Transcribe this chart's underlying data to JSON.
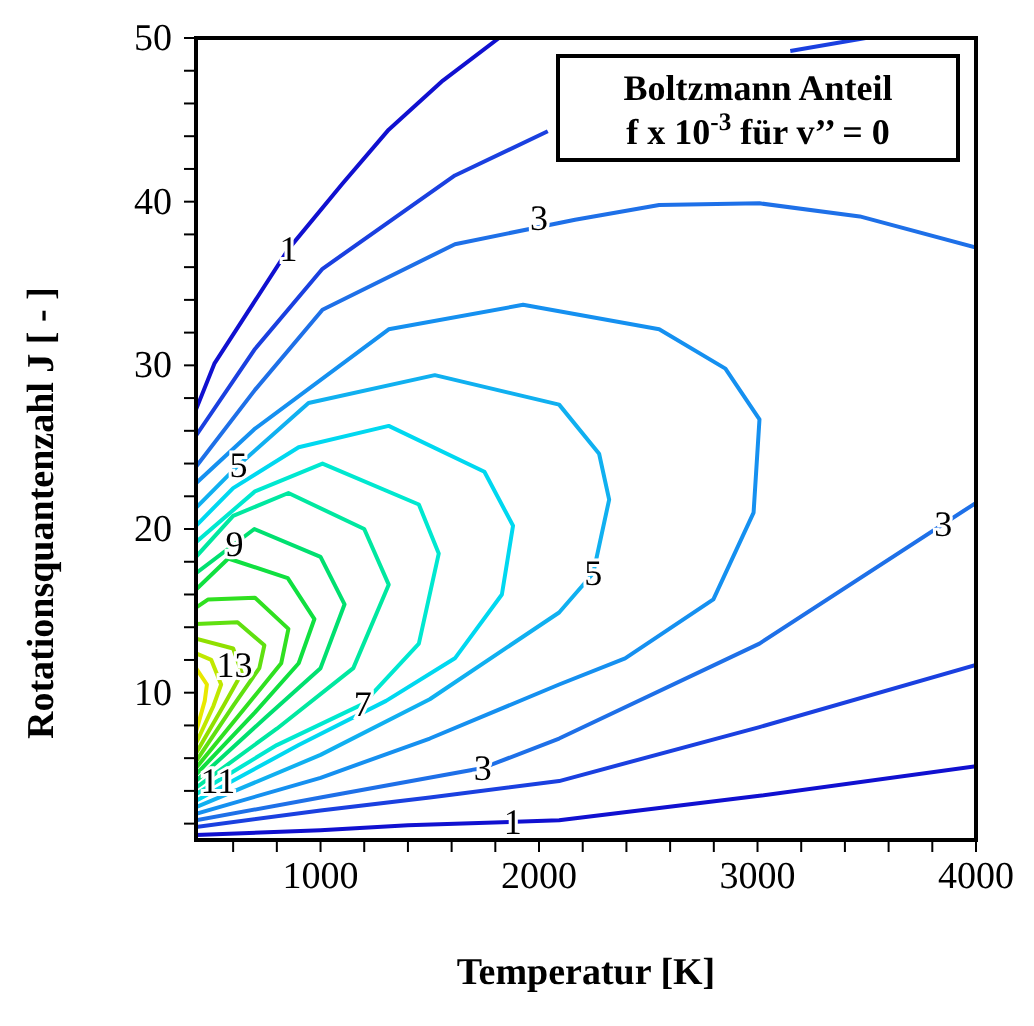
{
  "chart_data": {
    "type": "line",
    "title": "Boltzmann Anteil",
    "subtitle": "f x 10$^{-3}$  für v’’ = 0",
    "xlabel": "Temperatur [K]",
    "ylabel": "Rotationsquantenzahl J [ - ]",
    "xlim": [
      430,
      4000
    ],
    "ylim": [
      1,
      50
    ],
    "xticks": [
      {
        "value": 600,
        "label": null
      },
      {
        "value": 800,
        "label": null
      },
      1000,
      {
        "value": 1200,
        "label": null
      },
      {
        "value": 1400,
        "label": null
      },
      {
        "value": 1600,
        "label": null
      },
      {
        "value": 1800,
        "label": null
      },
      2000,
      {
        "value": 2200,
        "label": null
      },
      {
        "value": 2400,
        "label": null
      },
      {
        "value": 2600,
        "label": null
      },
      {
        "value": 2800,
        "label": null
      },
      3000,
      {
        "value": 3200,
        "label": null
      },
      {
        "value": 3400,
        "label": null
      },
      {
        "value": 3600,
        "label": null
      },
      {
        "value": 3800,
        "label": null
      },
      4000
    ],
    "yticks": [
      {
        "value": 2,
        "label": null
      },
      {
        "value": 4,
        "label": null
      },
      {
        "value": 6,
        "label": null
      },
      {
        "value": 8,
        "label": null
      },
      10,
      {
        "value": 12,
        "label": null
      },
      {
        "value": 14,
        "label": null
      },
      {
        "value": 16,
        "label": null
      },
      {
        "value": 18,
        "label": null
      },
      20,
      {
        "value": 22,
        "label": null
      },
      {
        "value": 24,
        "label": null
      },
      {
        "value": 26,
        "label": null
      },
      {
        "value": 28,
        "label": null
      },
      30,
      {
        "value": 32,
        "label": null
      },
      {
        "value": 34,
        "label": null
      },
      {
        "value": 36,
        "label": null
      },
      {
        "value": 38,
        "label": null
      },
      40,
      {
        "value": 42,
        "label": null
      },
      {
        "value": 44,
        "label": null
      },
      {
        "value": 46,
        "label": null
      },
      {
        "value": 48,
        "label": null
      },
      50
    ],
    "grid": false,
    "marker": "none",
    "line_style": "solid",
    "series": [
      {
        "color": "#1010d0",
        "x": [
          430,
          1000,
          1400,
          2092,
          3009,
          4000
        ],
        "values": [
          1.3,
          1.6,
          1.9,
          2.2,
          3.7,
          5.5
        ]
      },
      {
        "color": "#1010d0",
        "x": [
          430,
          514,
          853,
          1100,
          1312,
          1560,
          1817
        ],
        "values": [
          27.3,
          30.1,
          37.1,
          41.1,
          44.4,
          47.4,
          50
        ]
      },
      {
        "color": "#1a40e0",
        "x": [
          430,
          1000,
          1500,
          2092,
          3009,
          4000
        ],
        "values": [
          1.8,
          2.8,
          3.6,
          4.6,
          7.9,
          11.7
        ]
      },
      {
        "color": "#1a40e0",
        "x": [
          430,
          700,
          1009,
          1615,
          2040,
          2600,
          3150,
          3495
        ],
        "values": [
          25.7,
          31,
          35.9,
          41.6,
          44.3,
          null,
          49.2,
          50
        ]
      },
      {
        "color": "#1e70e8",
        "x": [
          430,
          1000,
          1743,
          2092,
          3009,
          4000
        ],
        "values": [
          2.2,
          3.6,
          5.4,
          7.2,
          13.0,
          21.6
        ]
      },
      {
        "color": "#1e70e8",
        "x": [
          430,
          700,
          1009,
          1615,
          2165,
          2550,
          3009,
          3468,
          4000
        ],
        "values": [
          23.8,
          28.5,
          33.4,
          37.4,
          38.9,
          39.8,
          39.9,
          39.1,
          37.2
        ]
      },
      {
        "color": "#1590f0",
        "x": [
          430,
          1000,
          1500,
          2092,
          2394,
          2798,
          2982,
          3009,
          2853,
          2550,
          1927,
          1312,
          697,
          430
        ],
        "values": [
          2.6,
          4.8,
          7.2,
          10.5,
          12.1,
          15.7,
          21.0,
          26.7,
          29.8,
          32.2,
          33.7,
          32.2,
          26.1,
          22.8
        ]
      },
      {
        "color": "#10b0f0",
        "x": [
          430,
          1000,
          1500,
          2092,
          2248,
          2321,
          2275,
          2092,
          1523,
          945,
          624,
          430
        ],
        "values": [
          3.0,
          6.2,
          9.6,
          14.9,
          17.3,
          21.8,
          24.6,
          27.6,
          29.4,
          27.7,
          23.9,
          21.3
        ]
      },
      {
        "color": "#00d8f0",
        "x": [
          430,
          900,
          1300,
          1615,
          1830,
          1881,
          1750,
          1312,
          900,
          600,
          430
        ],
        "values": [
          3.4,
          6.8,
          9.5,
          12.1,
          16,
          20.2,
          23.5,
          26.3,
          25,
          22.5,
          20.2
        ]
      },
      {
        "color": "#00e8d0",
        "x": [
          430,
          800,
          1193,
          1450,
          1541,
          1450,
          1009,
          700,
          430
        ],
        "values": [
          3.8,
          6.8,
          9.3,
          13,
          18.5,
          21.5,
          24.0,
          22.3,
          19.2
        ]
      },
      {
        "color": "#00e8a0",
        "x": [
          430,
          800,
          1150,
          1312,
          1200,
          853,
          600,
          430
        ],
        "values": [
          4.2,
          7.8,
          11.5,
          16.6,
          20,
          22.2,
          20.8,
          18.3
        ]
      },
      {
        "color": "#00e070",
        "x": [
          430,
          750,
          1000,
          1110,
          1000,
          697,
          430
        ],
        "values": [
          4.6,
          8.5,
          11.5,
          15.4,
          18.3,
          20.0,
          17.3
        ]
      },
      {
        "color": "#10e040",
        "x": [
          430,
          700,
          900,
          972,
          850,
          578,
          430
        ],
        "values": [
          5.0,
          8.8,
          11.8,
          14.5,
          17,
          18.2,
          16.3
        ]
      },
      {
        "color": "#30e020",
        "x": [
          430,
          650,
          820,
          853,
          700,
          486,
          430
        ],
        "values": [
          5.4,
          9,
          11.8,
          13.9,
          15.8,
          15.7,
          15.2
        ]
      },
      {
        "color": "#60e010",
        "x": [
          430,
          600,
          720,
          743,
          620,
          430
        ],
        "values": [
          5.8,
          9.2,
          11.5,
          12.9,
          14.3,
          14.2
        ]
      },
      {
        "color": "#90e000",
        "x": [
          430,
          560,
          640,
          600,
          430
        ],
        "values": [
          6.3,
          9.3,
          11.2,
          12.7,
          13.3
        ]
      },
      {
        "color": "#c0e800",
        "x": [
          430,
          510,
          545,
          500,
          430
        ],
        "values": [
          6.9,
          9.2,
          10.5,
          12,
          12.4
        ]
      },
      {
        "color": "#e8e800",
        "x": [
          430,
          470,
          480,
          430
        ],
        "values": [
          7.6,
          9.5,
          10.5,
          11.5
        ]
      }
    ],
    "annotations": [
      {
        "text": "1",
        "x": 853,
        "y": 37.1
      },
      {
        "text": "1",
        "x": 1880,
        "y": 2.1
      },
      {
        "text": "3",
        "x": 2000,
        "y": 39
      },
      {
        "text": "3",
        "x": 3850,
        "y": 20.3
      },
      {
        "text": "3",
        "x": 1743,
        "y": 5.4
      },
      {
        "text": "5",
        "x": 624,
        "y": 23.9
      },
      {
        "text": "5",
        "x": 2248,
        "y": 17.3
      },
      {
        "text": "7",
        "x": 1193,
        "y": 9.3
      },
      {
        "text": "9",
        "x": 606,
        "y": 19.1
      },
      {
        "text": "13",
        "x": 606,
        "y": 11.7
      },
      {
        "text": "11",
        "x": 530,
        "y": 4.6
      }
    ]
  }
}
